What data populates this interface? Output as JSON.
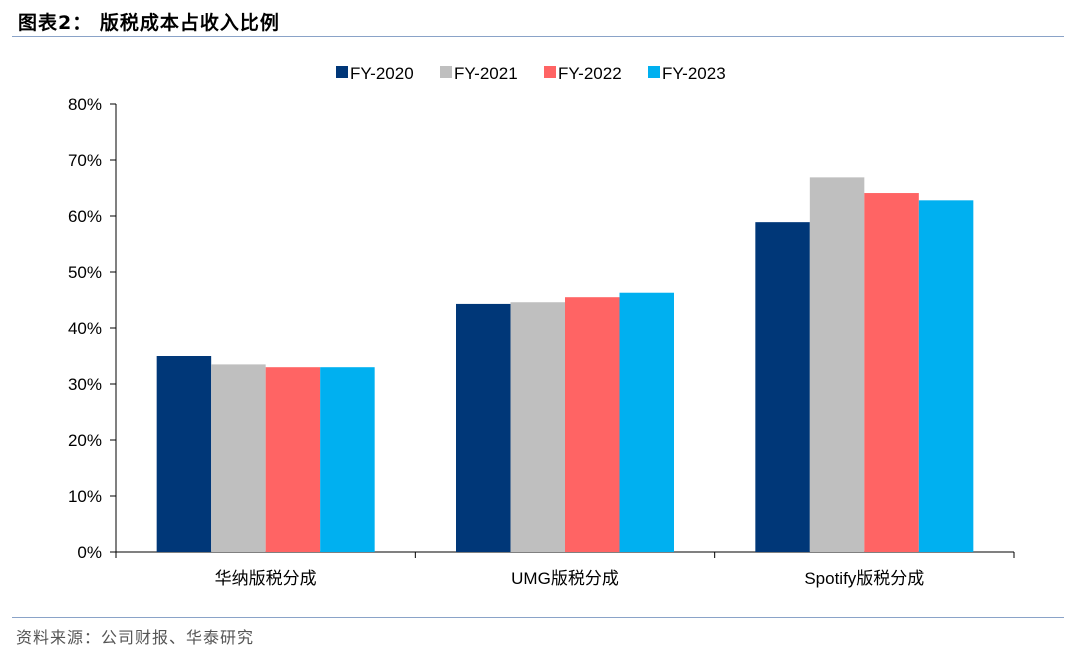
{
  "figure_title": "图表2：  版税成本占收入比例",
  "source_note": "资料来源：公司财报、华泰研究",
  "colors": {
    "FY-2020": "#003778",
    "FY-2021": "#bfbfbf",
    "FY-2022": "#ff6464",
    "FY-2023": "#00b0f0",
    "rule": "#8aa3c8"
  },
  "chart_data": {
    "type": "bar",
    "title": "",
    "xlabel": "",
    "ylabel": "",
    "categories": [
      "华纳版税分成",
      "UMG版税分成",
      "Spotify版税分成"
    ],
    "series": [
      {
        "name": "FY-2020",
        "values": [
          0.35,
          0.443,
          0.589
        ]
      },
      {
        "name": "FY-2021",
        "values": [
          0.335,
          0.446,
          0.669
        ]
      },
      {
        "name": "FY-2022",
        "values": [
          0.33,
          0.455,
          0.641
        ]
      },
      {
        "name": "FY-2023",
        "values": [
          0.33,
          0.463,
          0.628
        ]
      }
    ],
    "ylim": [
      0,
      0.8
    ],
    "yticks": [
      0,
      0.1,
      0.2,
      0.3,
      0.4,
      0.5,
      0.6,
      0.7,
      0.8
    ],
    "ytick_labels": [
      "0%",
      "10%",
      "20%",
      "30%",
      "40%",
      "50%",
      "60%",
      "70%",
      "80%"
    ],
    "legend_position": "top-center",
    "grid": false
  }
}
